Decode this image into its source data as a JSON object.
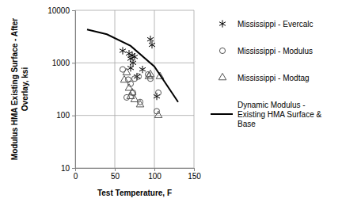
{
  "chart_data": {
    "type": "scatter",
    "x_label": "Test Temperature, F",
    "y_label": "Modulus HMA Existing Surface - After Overlay, ksi",
    "xlim": [
      0,
      150
    ],
    "xticks": [
      0,
      50,
      100,
      150
    ],
    "ylim": [
      10,
      10000
    ],
    "yticks": [
      10,
      100,
      1000,
      10000
    ],
    "log": "y",
    "grid": true,
    "legend": "right",
    "series": [
      {
        "name": "Mississippi - Evercalc",
        "color": "#000000",
        "marker": "asterisk",
        "x": [
          60,
          68,
          70,
          72,
          73,
          75,
          78,
          85,
          95,
          97,
          103,
          70
        ],
        "values": [
          1700,
          1500,
          1200,
          1400,
          1000,
          1300,
          550,
          750,
          2800,
          2200,
          230,
          800
        ]
      },
      {
        "name": "Mississippi - Modulus",
        "color": "#000000",
        "marker": "circle",
        "x": [
          60,
          65,
          67,
          70,
          73,
          75,
          80,
          82,
          92,
          95,
          103,
          105
        ],
        "values": [
          750,
          220,
          480,
          400,
          270,
          500,
          550,
          180,
          600,
          500,
          120,
          270
        ]
      },
      {
        "name": "Mississippi - Modtag",
        "color": "#000000",
        "marker": "triangle",
        "x": [
          62,
          65,
          68,
          70,
          72,
          75,
          82,
          93,
          95,
          105,
          107
        ],
        "values": [
          470,
          650,
          330,
          230,
          270,
          200,
          160,
          550,
          600,
          100,
          550
        ]
      },
      {
        "name": "Dynamic Modulus - Existing HMA Surface & Base",
        "color": "#000000",
        "type": "line",
        "line_style": "solid",
        "x": [
          15,
          40,
          70,
          100,
          130
        ],
        "values": [
          4300,
          3500,
          2100,
          850,
          180
        ]
      }
    ]
  }
}
